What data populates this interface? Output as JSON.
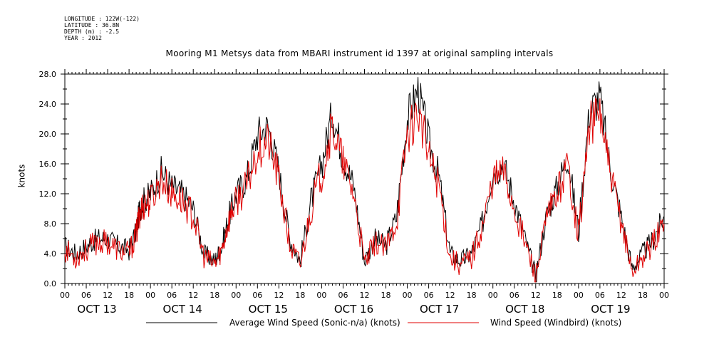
{
  "meta": {
    "longitude": "LONGITUDE : 122W(-122)",
    "latitude": "LATITUDE : 36.8N",
    "depth": "DEPTH (m) : -2.5",
    "year": "YEAR : 2012"
  },
  "chart_data": {
    "type": "line",
    "title": "Mooring M1 Metsys data from MBARI instrument id 1397 at original sampling intervals",
    "xlabel": "",
    "ylabel": "knots",
    "ylim": [
      0,
      28
    ],
    "yticks": [
      "0.0",
      "4.0",
      "8.0",
      "12.0",
      "16.0",
      "20.0",
      "24.0",
      "28.0"
    ],
    "xlim_hours": [
      0,
      168
    ],
    "xticks": [
      "00",
      "06",
      "12",
      "18",
      "00",
      "06",
      "12",
      "18",
      "00",
      "06",
      "12",
      "18",
      "00",
      "06",
      "12",
      "18",
      "00",
      "06",
      "12",
      "18",
      "00",
      "06",
      "12",
      "18",
      "00",
      "06",
      "12",
      "18",
      "00"
    ],
    "day_labels": [
      "OCT 13",
      "OCT 14",
      "OCT 15",
      "OCT 16",
      "OCT 17",
      "OCT 18",
      "OCT 19"
    ],
    "grid": false,
    "legend_position": "bottom",
    "series": [
      {
        "name": "Average Wind Speed (Sonic-n/a) (knots)",
        "color": "#000000",
        "x": [
          0,
          3,
          6,
          9,
          12,
          15,
          18,
          20,
          21,
          22,
          24,
          27,
          30,
          33,
          36,
          39,
          42,
          44,
          46,
          48,
          51,
          54,
          57,
          60,
          63,
          66,
          69,
          72,
          75,
          78,
          81,
          84,
          87,
          90,
          93,
          96,
          99,
          102,
          105,
          108,
          111,
          114,
          117,
          120,
          123,
          126,
          129,
          132,
          135,
          138,
          141,
          144,
          147,
          150,
          153,
          156,
          159,
          162,
          165,
          168
        ],
        "values": [
          5,
          4,
          5,
          6,
          6,
          5,
          4.5,
          7,
          10,
          11,
          12,
          15,
          13,
          12,
          10,
          4,
          3,
          5,
          9,
          12,
          14,
          20,
          21,
          15,
          6,
          3,
          11,
          16,
          23,
          17,
          13,
          3,
          6,
          5,
          9,
          22,
          26,
          19,
          14,
          4,
          3,
          4,
          8,
          15,
          16,
          11,
          6,
          1,
          9,
          13,
          17,
          7,
          23,
          25,
          15,
          9,
          2,
          4,
          6,
          9
        ]
      },
      {
        "name": "Wind Speed (Windbird) (knots)",
        "color": "#e00000",
        "x": [
          0,
          3,
          6,
          9,
          12,
          15,
          18,
          20,
          21,
          22,
          24,
          27,
          30,
          33,
          36,
          39,
          42,
          44,
          46,
          48,
          51,
          54,
          57,
          60,
          63,
          66,
          69,
          72,
          75,
          78,
          81,
          84,
          87,
          90,
          93,
          96,
          99,
          102,
          105,
          108,
          111,
          114,
          117,
          120,
          123,
          126,
          129,
          132,
          135,
          138,
          141,
          144,
          147,
          150,
          153,
          156,
          159,
          162,
          165,
          168
        ],
        "values": [
          4.5,
          3.5,
          4.5,
          5.5,
          5.5,
          4.5,
          4,
          6.5,
          9.5,
          10.5,
          11,
          14,
          12,
          11,
          9,
          3.5,
          2.5,
          4.5,
          8.5,
          11,
          13,
          18,
          19,
          14,
          5,
          2.5,
          10,
          15,
          21,
          16,
          12,
          2.5,
          5.5,
          4.5,
          8.5,
          20,
          23,
          17,
          13,
          3.5,
          2.5,
          3.5,
          7.5,
          14,
          15,
          10,
          5.5,
          0.8,
          8.5,
          12,
          16,
          6.5,
          21,
          23,
          14,
          8.5,
          1.5,
          3.5,
          5.5,
          8
        ]
      }
    ]
  }
}
